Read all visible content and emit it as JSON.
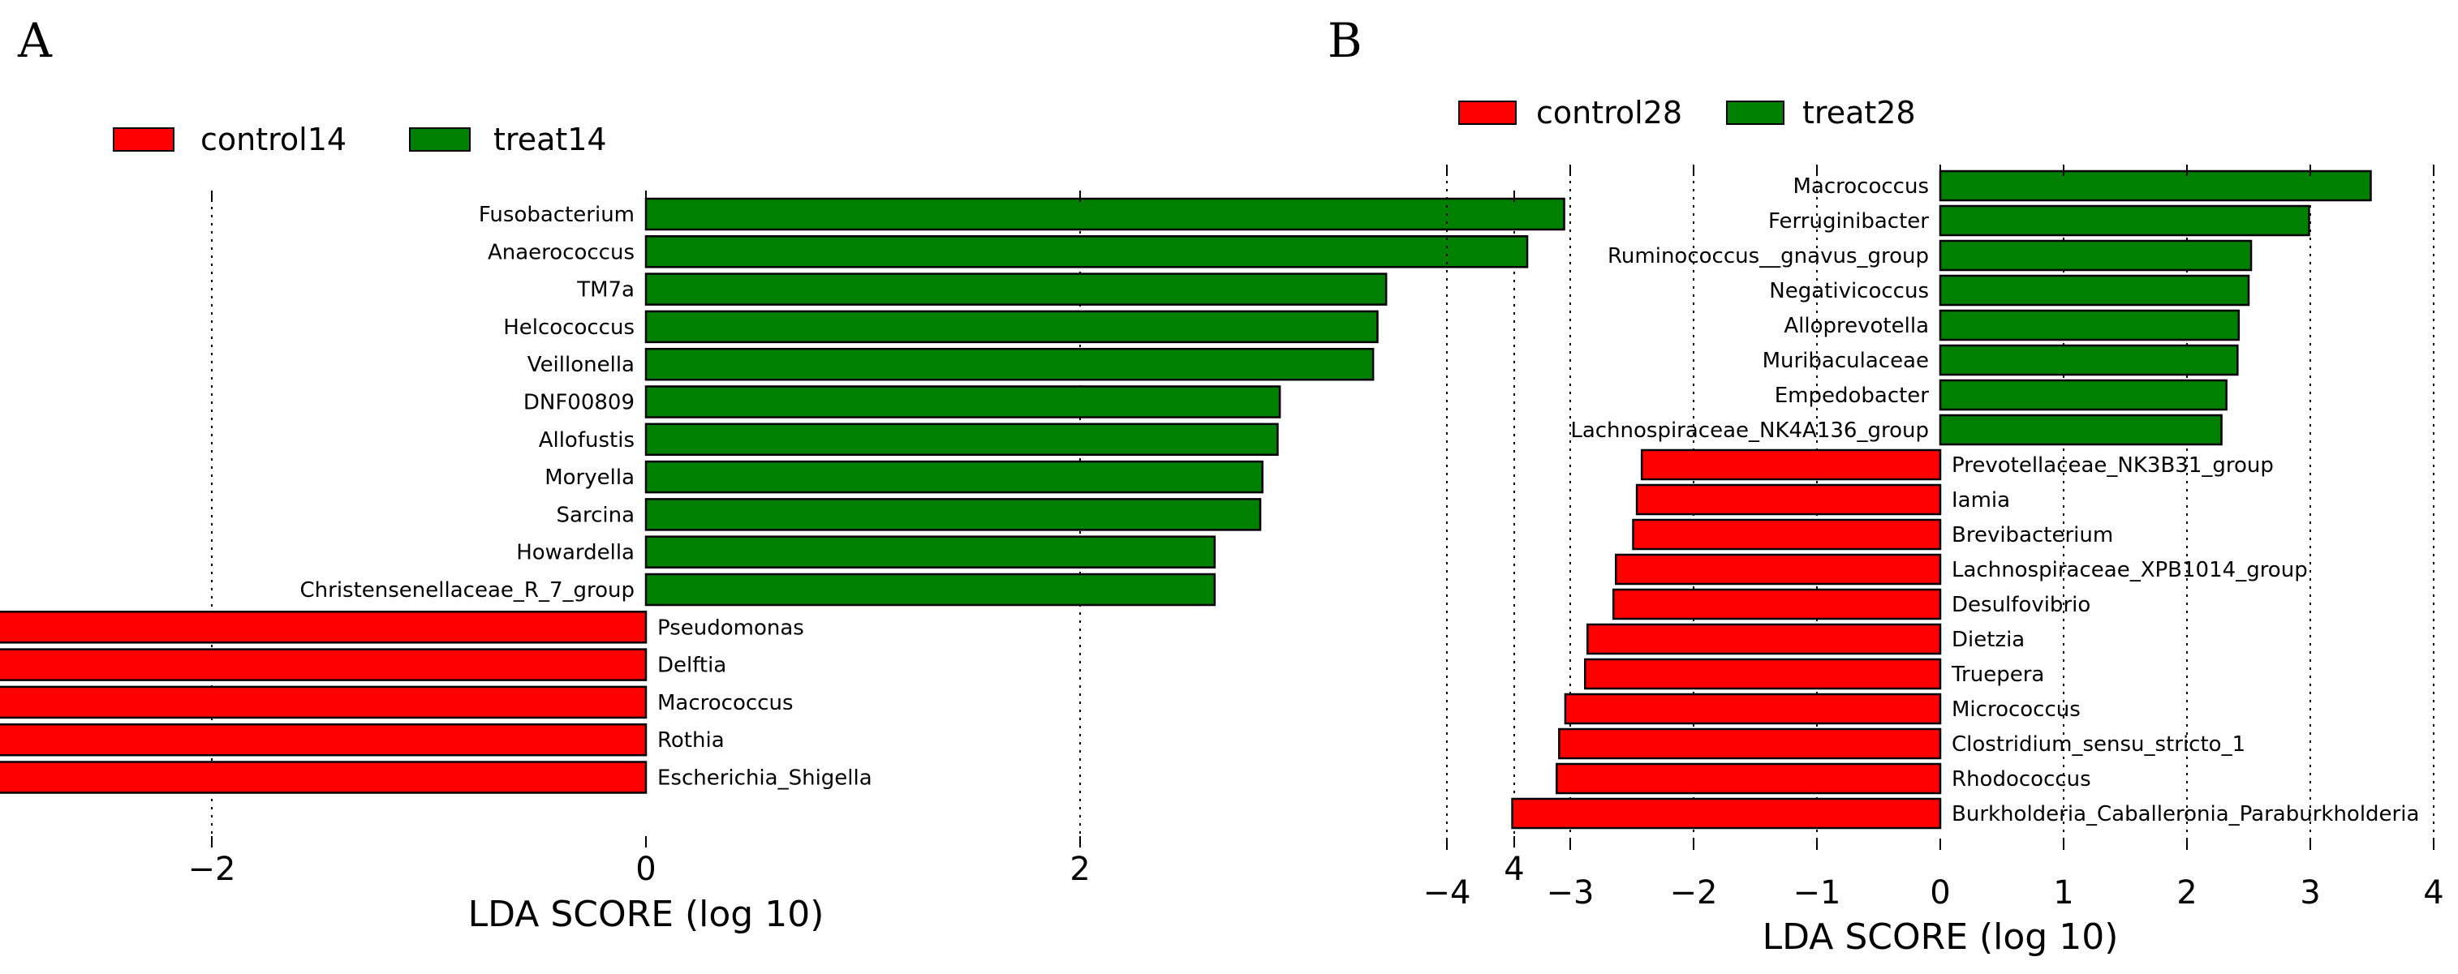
{
  "chart_data": [
    {
      "panel_label": "A",
      "type": "bar",
      "orientation": "horizontal",
      "xlabel": "LDA SCORE (log 10)",
      "xlim": [
        -4.5,
        4.3
      ],
      "xticks": [
        -4,
        -2,
        0,
        2,
        4
      ],
      "xtick_labels": [
        "−4",
        "−2",
        "0",
        "2",
        "4"
      ],
      "grid": "vertical dotted",
      "legend": [
        {
          "label": "control14",
          "color": "#ff0000"
        },
        {
          "label": "treat14",
          "color": "#008000"
        }
      ],
      "legend_position": "top-left",
      "bars": [
        {
          "label": "Fusobacterium",
          "value": 4.23,
          "group": "treat14",
          "color": "#008000"
        },
        {
          "label": "Anaerococcus",
          "value": 4.06,
          "group": "treat14",
          "color": "#008000"
        },
        {
          "label": "TM7a",
          "value": 3.41,
          "group": "treat14",
          "color": "#008000"
        },
        {
          "label": "Helcococcus",
          "value": 3.37,
          "group": "treat14",
          "color": "#008000"
        },
        {
          "label": "Veillonella",
          "value": 3.35,
          "group": "treat14",
          "color": "#008000"
        },
        {
          "label": "DNF00809",
          "value": 2.92,
          "group": "treat14",
          "color": "#008000"
        },
        {
          "label": "Allofustis",
          "value": 2.91,
          "group": "treat14",
          "color": "#008000"
        },
        {
          "label": "Moryella",
          "value": 2.84,
          "group": "treat14",
          "color": "#008000"
        },
        {
          "label": "Sarcina",
          "value": 2.83,
          "group": "treat14",
          "color": "#008000"
        },
        {
          "label": "Howardella",
          "value": 2.62,
          "group": "treat14",
          "color": "#008000"
        },
        {
          "label": "Christensenellaceae_R_7_group",
          "value": 2.62,
          "group": "treat14",
          "color": "#008000"
        },
        {
          "label": "Pseudomonas",
          "value": -3.19,
          "group": "control14",
          "color": "#ff0000"
        },
        {
          "label": "Delftia",
          "value": -3.27,
          "group": "control14",
          "color": "#ff0000"
        },
        {
          "label": "Macrococcus",
          "value": -3.36,
          "group": "control14",
          "color": "#ff0000"
        },
        {
          "label": "Rothia",
          "value": -3.58,
          "group": "control14",
          "color": "#ff0000"
        },
        {
          "label": "Escherichia_Shigella",
          "value": -4.51,
          "group": "control14",
          "color": "#ff0000"
        }
      ]
    },
    {
      "panel_label": "B",
      "type": "bar",
      "orientation": "horizontal",
      "xlabel": "LDA SCORE (log 10)",
      "xlim": [
        -4,
        4
      ],
      "xticks": [
        -4,
        -3,
        -2,
        -1,
        0,
        1,
        2,
        3,
        4
      ],
      "xtick_labels": [
        "−4",
        "−3",
        "−2",
        "−1",
        "0",
        "1",
        "2",
        "3",
        "4"
      ],
      "grid": "vertical dotted",
      "legend": [
        {
          "label": "control28",
          "color": "#ff0000"
        },
        {
          "label": "treat28",
          "color": "#008000"
        }
      ],
      "legend_position": "top-left",
      "bars": [
        {
          "label": "Macrococcus",
          "value": 3.49,
          "group": "treat28",
          "color": "#008000"
        },
        {
          "label": "Ferruginibacter",
          "value": 2.99,
          "group": "treat28",
          "color": "#008000"
        },
        {
          "label": "Ruminococcus__gnavus_group",
          "value": 2.52,
          "group": "treat28",
          "color": "#008000"
        },
        {
          "label": "Negativicoccus",
          "value": 2.5,
          "group": "treat28",
          "color": "#008000"
        },
        {
          "label": "Alloprevotella",
          "value": 2.42,
          "group": "treat28",
          "color": "#008000"
        },
        {
          "label": "Muribaculaceae",
          "value": 2.41,
          "group": "treat28",
          "color": "#008000"
        },
        {
          "label": "Empedobacter",
          "value": 2.32,
          "group": "treat28",
          "color": "#008000"
        },
        {
          "label": "Lachnospiraceae_NK4A136_group",
          "value": 2.28,
          "group": "treat28",
          "color": "#008000"
        },
        {
          "label": "Prevotellaceae_NK3B31_group",
          "value": -2.42,
          "group": "control28",
          "color": "#ff0000"
        },
        {
          "label": "Iamia",
          "value": -2.46,
          "group": "control28",
          "color": "#ff0000"
        },
        {
          "label": "Brevibacterium",
          "value": -2.49,
          "group": "control28",
          "color": "#ff0000"
        },
        {
          "label": "Lachnospiraceae_XPB1014_group",
          "value": -2.63,
          "group": "control28",
          "color": "#ff0000"
        },
        {
          "label": "Desulfovibrio",
          "value": -2.65,
          "group": "control28",
          "color": "#ff0000"
        },
        {
          "label": "Dietzia",
          "value": -2.86,
          "group": "control28",
          "color": "#ff0000"
        },
        {
          "label": "Truepera",
          "value": -2.88,
          "group": "control28",
          "color": "#ff0000"
        },
        {
          "label": "Micrococcus",
          "value": -3.04,
          "group": "control28",
          "color": "#ff0000"
        },
        {
          "label": "Clostridium_sensu_stricto_1",
          "value": -3.09,
          "group": "control28",
          "color": "#ff0000"
        },
        {
          "label": "Rhodococcus",
          "value": -3.11,
          "group": "control28",
          "color": "#ff0000"
        },
        {
          "label": "Burkholderia_Caballeronia_Paraburkholderia",
          "value": -3.47,
          "group": "control28",
          "color": "#ff0000"
        }
      ]
    }
  ]
}
